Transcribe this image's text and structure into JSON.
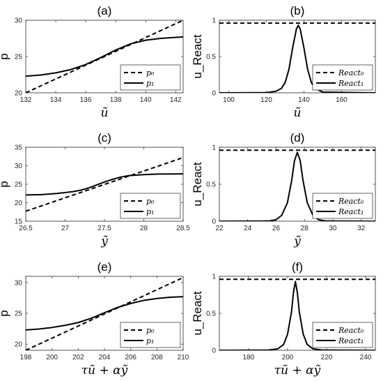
{
  "chart_data": [
    {
      "id": "a",
      "type": "line",
      "title": "(a)",
      "xlabel": "ũ",
      "ylabel": "p",
      "xlim": [
        132,
        142.5
      ],
      "ylim": [
        20,
        30
      ],
      "xticks": [
        "132",
        "134",
        "136",
        "138",
        "140",
        "142"
      ],
      "yticks": [
        "20",
        "25",
        "30"
      ],
      "legend": "bottom-right",
      "series": [
        {
          "name": "p₀",
          "style": "dashed",
          "x": [
            132,
            142.5
          ],
          "y": [
            20,
            30
          ]
        },
        {
          "name": "p₁",
          "style": "solid",
          "x": [
            132,
            133,
            134,
            135,
            136,
            137,
            138,
            139,
            140,
            141,
            142.5
          ],
          "y": [
            22.3,
            22.45,
            22.75,
            23.2,
            23.9,
            24.85,
            25.9,
            26.75,
            27.25,
            27.5,
            27.7
          ]
        }
      ]
    },
    {
      "id": "b",
      "type": "line",
      "title": "(b)",
      "xlabel": "ũ",
      "ylabel": "u_React",
      "xlim": [
        95,
        178
      ],
      "ylim": [
        0,
        1
      ],
      "xticks": [
        "100",
        "120",
        "140",
        "160"
      ],
      "yticks": [
        "0",
        "0.5",
        "1"
      ],
      "legend": "bottom-right",
      "series": [
        {
          "name": "React₀",
          "style": "dashed",
          "x": [
            95,
            178
          ],
          "y": [
            0.96,
            0.96
          ]
        },
        {
          "name": "React₁",
          "style": "solid",
          "x": [
            95,
            120,
            125,
            128,
            130,
            132,
            134,
            136,
            137,
            138,
            140,
            142,
            144,
            146,
            150,
            178
          ],
          "y": [
            0,
            0.003,
            0.02,
            0.06,
            0.14,
            0.32,
            0.62,
            0.88,
            0.93,
            0.88,
            0.62,
            0.32,
            0.14,
            0.06,
            0.01,
            0
          ]
        }
      ]
    },
    {
      "id": "c",
      "type": "line",
      "title": "(c)",
      "xlabel": "ỹ",
      "ylabel": "p",
      "xlim": [
        26.5,
        28.5
      ],
      "ylim": [
        15,
        35
      ],
      "xticks": [
        "26.5",
        "27",
        "27.5",
        "28",
        "28.5"
      ],
      "yticks": [
        "15",
        "20",
        "25",
        "30",
        "35"
      ],
      "legend": "bottom-right",
      "series": [
        {
          "name": "p₀",
          "style": "dashed",
          "x": [
            26.5,
            28.5
          ],
          "y": [
            17.7,
            32.2
          ]
        },
        {
          "name": "p₁",
          "style": "solid",
          "x": [
            26.5,
            26.7,
            26.9,
            27.1,
            27.2,
            27.3,
            27.4,
            27.5,
            27.6,
            27.7,
            27.8,
            28.0,
            28.2,
            28.5
          ],
          "y": [
            22.1,
            22.2,
            22.5,
            23.0,
            23.4,
            24.0,
            24.8,
            25.6,
            26.3,
            26.9,
            27.3,
            27.6,
            27.75,
            27.8
          ]
        }
      ]
    },
    {
      "id": "d",
      "type": "line",
      "title": "(d)",
      "xlabel": "ỹ",
      "ylabel": "u_React",
      "xlim": [
        22,
        33
      ],
      "ylim": [
        0,
        1
      ],
      "xticks": [
        "22",
        "24",
        "26",
        "28",
        "30",
        "32"
      ],
      "yticks": [
        "0",
        "0.5",
        "1"
      ],
      "legend": "bottom-right",
      "series": [
        {
          "name": "React₀",
          "style": "dashed",
          "x": [
            22,
            33
          ],
          "y": [
            0.96,
            0.96
          ]
        },
        {
          "name": "React₁",
          "style": "solid",
          "x": [
            22,
            25.5,
            26.0,
            26.4,
            26.8,
            27.1,
            27.3,
            27.5,
            27.7,
            27.9,
            28.2,
            28.6,
            29.0,
            29.5,
            33
          ],
          "y": [
            0,
            0.003,
            0.02,
            0.08,
            0.25,
            0.55,
            0.82,
            0.93,
            0.82,
            0.55,
            0.25,
            0.08,
            0.02,
            0.003,
            0
          ]
        }
      ]
    },
    {
      "id": "e",
      "type": "line",
      "title": "(e)",
      "xlabel": "τũ + αỹ",
      "ylabel": "p",
      "xlim": [
        198,
        210
      ],
      "ylim": [
        19,
        31
      ],
      "xticks": [
        "198",
        "200",
        "202",
        "204",
        "206",
        "208",
        "210"
      ],
      "yticks": [
        "20",
        "25",
        "30"
      ],
      "legend": "bottom-right",
      "series": [
        {
          "name": "p₀",
          "style": "dashed",
          "x": [
            198,
            210
          ],
          "y": [
            19.0,
            30.8
          ]
        },
        {
          "name": "p₁",
          "style": "solid",
          "x": [
            198,
            199,
            200,
            201,
            202,
            203,
            204,
            205,
            206,
            207,
            208,
            209,
            210
          ],
          "y": [
            22.3,
            22.45,
            22.7,
            23.05,
            23.5,
            24.2,
            25.1,
            25.95,
            26.6,
            27.1,
            27.4,
            27.6,
            27.7
          ]
        }
      ]
    },
    {
      "id": "f",
      "type": "line",
      "title": "(f)",
      "xlabel": "τũ + αỹ",
      "ylabel": "u_React",
      "xlim": [
        165,
        245
      ],
      "ylim": [
        0,
        1
      ],
      "xticks": [
        "180",
        "200",
        "220",
        "240"
      ],
      "yticks": [
        "0",
        "0.5",
        "1"
      ],
      "legend": "bottom-right",
      "series": [
        {
          "name": "React₀",
          "style": "dashed",
          "x": [
            165,
            245
          ],
          "y": [
            0.96,
            0.96
          ]
        },
        {
          "name": "React₁",
          "style": "solid",
          "x": [
            165,
            190,
            195,
            198,
            200,
            202,
            203,
            204,
            205,
            206,
            208,
            210,
            213,
            218,
            245
          ],
          "y": [
            0,
            0.003,
            0.02,
            0.08,
            0.22,
            0.52,
            0.78,
            0.93,
            0.78,
            0.52,
            0.22,
            0.08,
            0.02,
            0.003,
            0
          ]
        }
      ]
    }
  ]
}
